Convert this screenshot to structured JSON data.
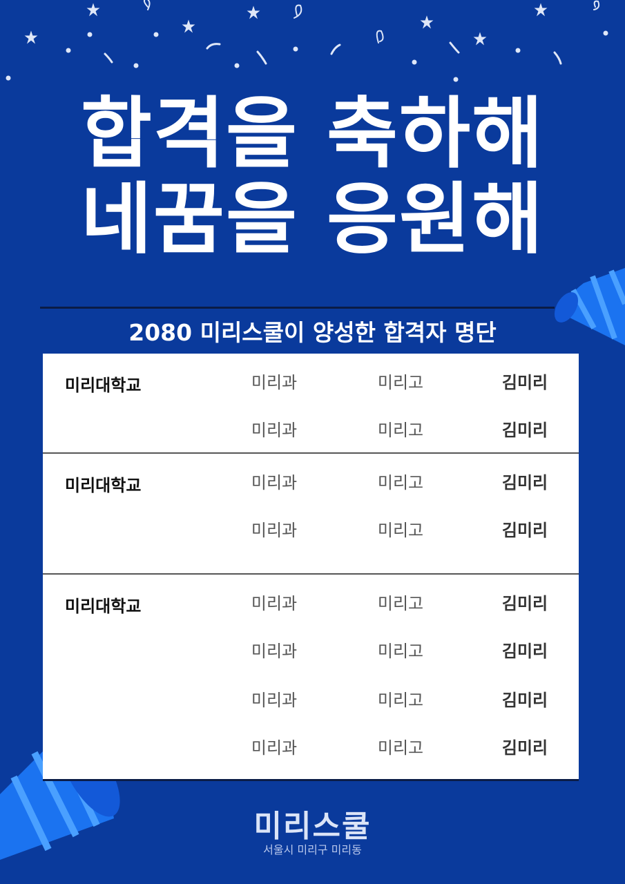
{
  "colors": {
    "background": "#0a3a9c",
    "board": "#ffffff",
    "horn": "#1b73f0",
    "horn_stripe": "#4aa0ff"
  },
  "headline": {
    "line1": "합격을 축하해",
    "line2": "네꿈을 응원해"
  },
  "subtitle": "2080 미리스쿨이 양성한 합격자 명단",
  "groups": [
    {
      "school": "미리대학교",
      "rows": [
        {
          "dept": "미리과",
          "school": "미리고",
          "name": "김미리"
        },
        {
          "dept": "미리과",
          "school": "미리고",
          "name": "김미리"
        }
      ]
    },
    {
      "school": "미리대학교",
      "rows": [
        {
          "dept": "미리과",
          "school": "미리고",
          "name": "김미리"
        },
        {
          "dept": "미리과",
          "school": "미리고",
          "name": "김미리"
        }
      ]
    },
    {
      "school": "미리대학교",
      "rows": [
        {
          "dept": "미리과",
          "school": "미리고",
          "name": "김미리"
        },
        {
          "dept": "미리과",
          "school": "미리고",
          "name": "김미리"
        },
        {
          "dept": "미리과",
          "school": "미리고",
          "name": "김미리"
        },
        {
          "dept": "미리과",
          "school": "미리고",
          "name": "김미리"
        }
      ]
    }
  ],
  "footer": {
    "brand": "미리스쿨",
    "address": "서울시 미리구 미리동"
  }
}
